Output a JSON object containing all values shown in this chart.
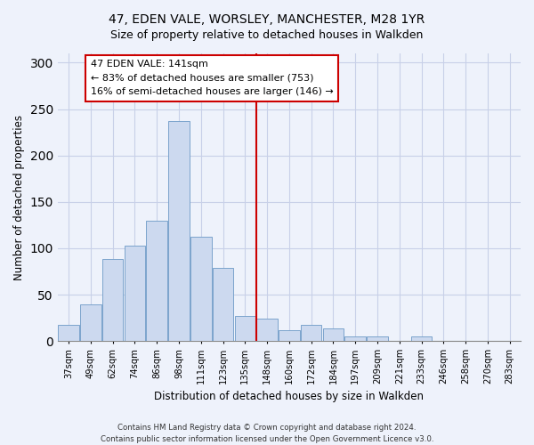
{
  "title": "47, EDEN VALE, WORSLEY, MANCHESTER, M28 1YR",
  "subtitle": "Size of property relative to detached houses in Walkden",
  "xlabel": "Distribution of detached houses by size in Walkden",
  "ylabel": "Number of detached properties",
  "categories": [
    "37sqm",
    "49sqm",
    "62sqm",
    "74sqm",
    "86sqm",
    "98sqm",
    "111sqm",
    "123sqm",
    "135sqm",
    "148sqm",
    "160sqm",
    "172sqm",
    "184sqm",
    "197sqm",
    "209sqm",
    "221sqm",
    "233sqm",
    "246sqm",
    "258sqm",
    "270sqm",
    "283sqm"
  ],
  "values": [
    17,
    39,
    88,
    103,
    130,
    237,
    112,
    79,
    27,
    24,
    12,
    17,
    14,
    5,
    5,
    0,
    5,
    0,
    0,
    0,
    0
  ],
  "bar_color": "#ccd9ef",
  "bar_edge_color": "#7ba3cc",
  "vline_color": "#cc0000",
  "ylim": [
    0,
    310
  ],
  "yticks": [
    0,
    50,
    100,
    150,
    200,
    250,
    300
  ],
  "annotation_title": "47 EDEN VALE: 141sqm",
  "annotation_line1": "← 83% of detached houses are smaller (753)",
  "annotation_line2": "16% of semi-detached houses are larger (146) →",
  "annotation_box_color": "#ffffff",
  "annotation_box_edge": "#cc0000",
  "footer_line1": "Contains HM Land Registry data © Crown copyright and database right 2024.",
  "footer_line2": "Contains public sector information licensed under the Open Government Licence v3.0.",
  "background_color": "#eef2fb",
  "grid_color": "#c8d0e8"
}
